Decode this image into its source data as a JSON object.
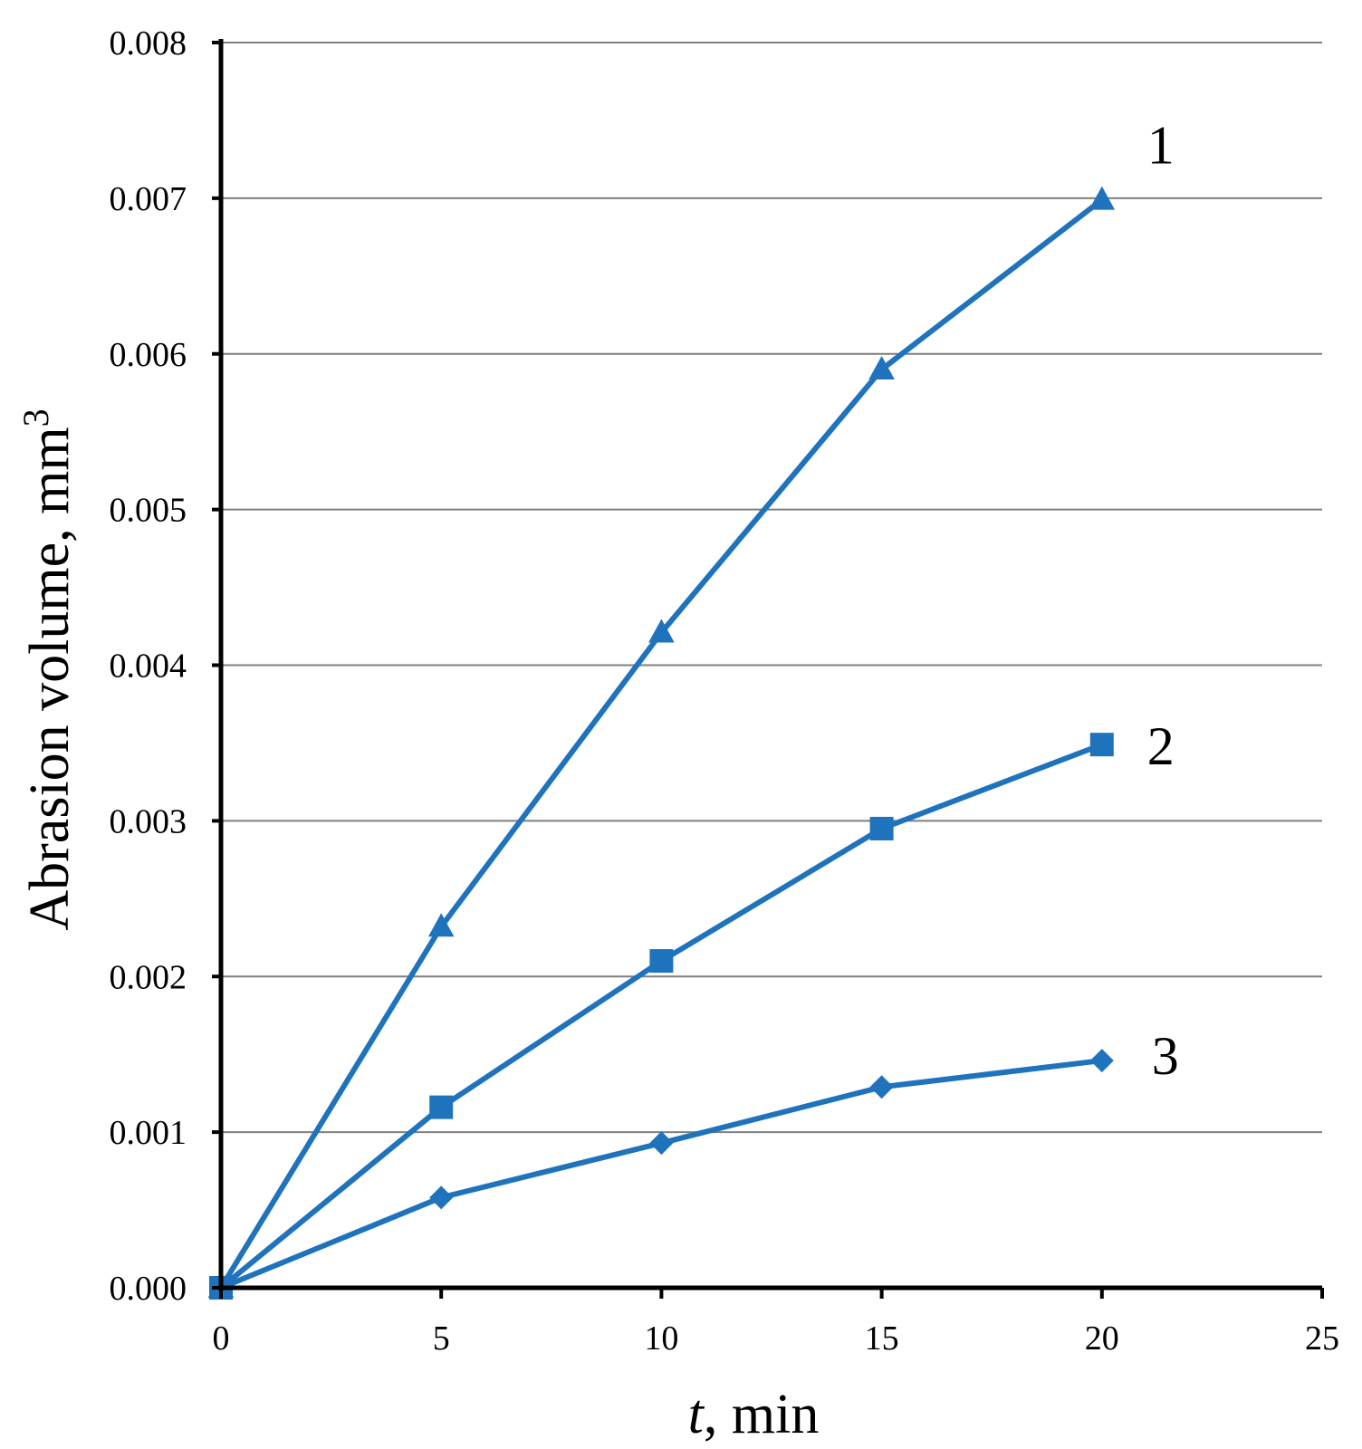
{
  "chart_data": {
    "type": "line",
    "title": "",
    "xlabel_italic": "t",
    "xlabel_rest": ", min",
    "ylabel": "Abrasion volume, mm",
    "ylabel_sup": "3",
    "xlim": [
      0,
      25
    ],
    "ylim": [
      0,
      0.008
    ],
    "x_ticks": [
      "0",
      "5",
      "10",
      "15",
      "20",
      "25"
    ],
    "y_ticks": [
      "0.000",
      "0.001",
      "0.002",
      "0.003",
      "0.004",
      "0.005",
      "0.006",
      "0.007",
      "0.008"
    ],
    "grid": "horizontal",
    "line_color": "#1f73bd",
    "series": [
      {
        "name": "1",
        "marker": "triangle",
        "x": [
          0,
          5,
          10,
          15,
          20
        ],
        "values": [
          0,
          0.00232,
          0.00421,
          0.0059,
          0.00699
        ]
      },
      {
        "name": "2",
        "marker": "square",
        "x": [
          0,
          5,
          10,
          15,
          20
        ],
        "values": [
          0,
          0.00116,
          0.0021,
          0.00295,
          0.00349
        ]
      },
      {
        "name": "3",
        "marker": "diamond",
        "x": [
          0,
          5,
          10,
          15,
          20
        ],
        "values": [
          0,
          0.00058,
          0.00093,
          0.00129,
          0.00146
        ]
      }
    ]
  }
}
